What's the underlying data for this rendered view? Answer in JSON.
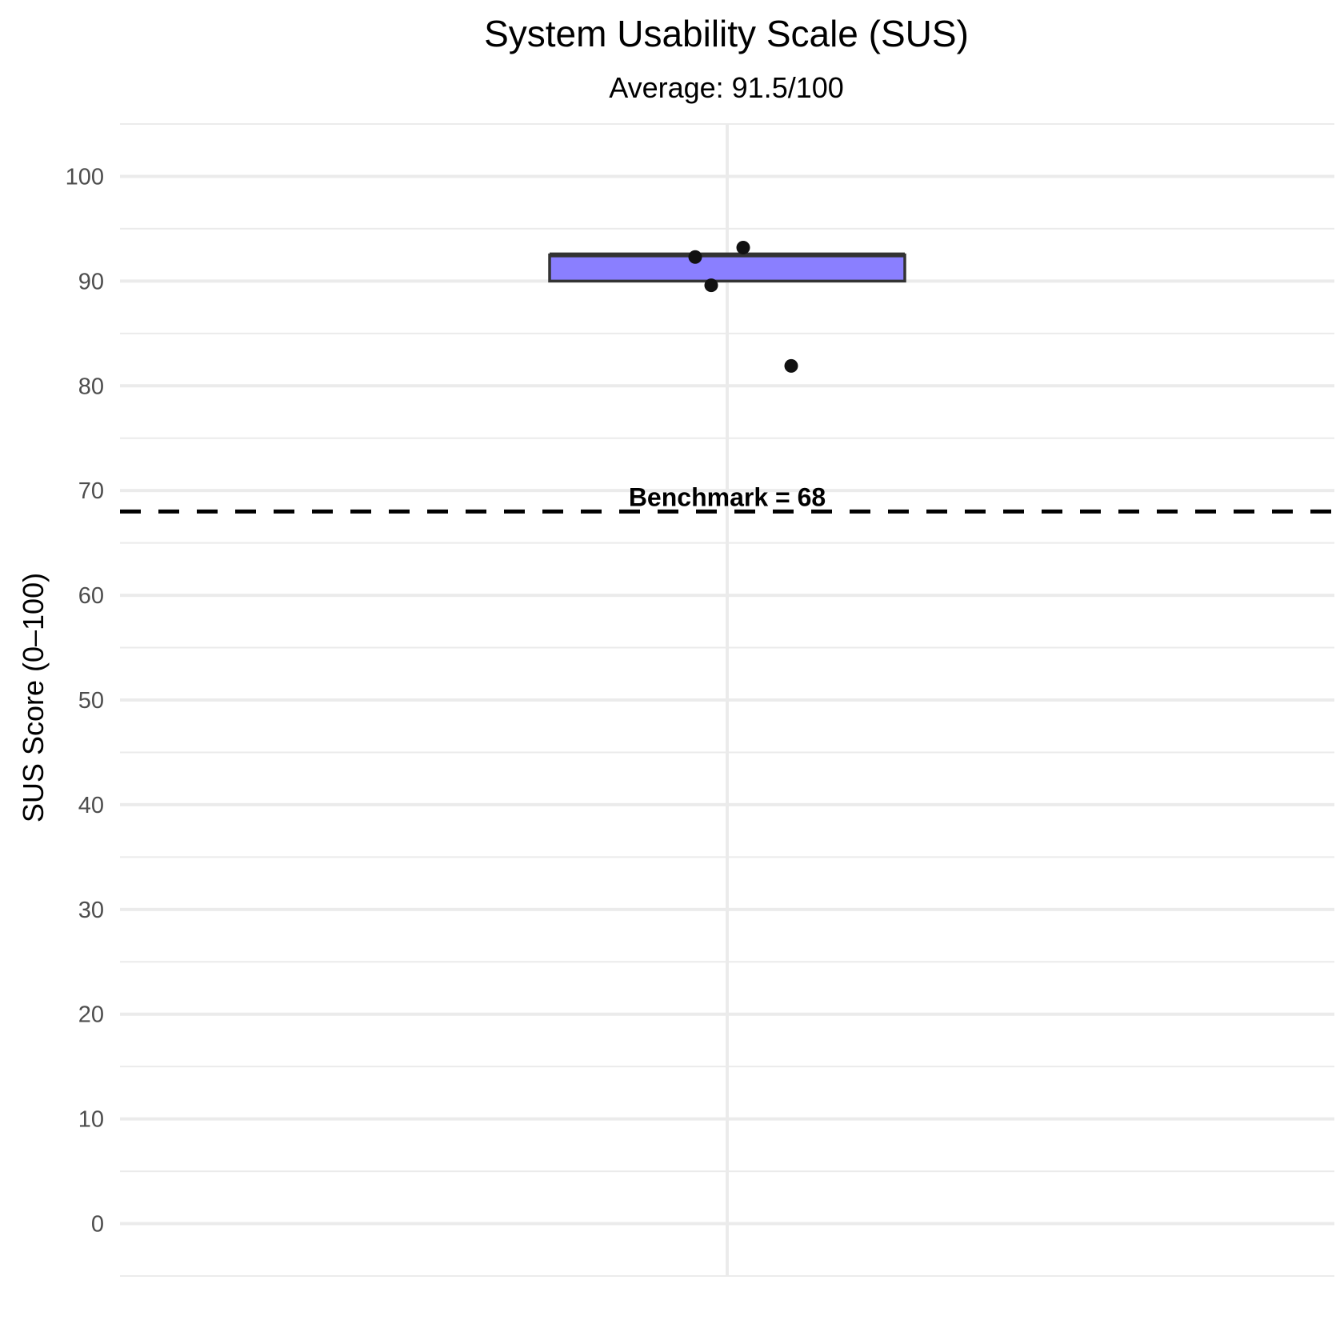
{
  "chart_data": {
    "type": "box",
    "title": "System Usability Scale (SUS)",
    "subtitle": "Average: 91.5/100",
    "ylabel": "SUS Score (0–100)",
    "xlabel": "",
    "ylim": [
      -5,
      105
    ],
    "yticks": [
      0,
      10,
      20,
      30,
      40,
      50,
      60,
      70,
      80,
      90,
      100
    ],
    "ytick_labels": [
      "0",
      "10",
      "20",
      "30",
      "40",
      "50",
      "60",
      "70",
      "80",
      "90",
      "100"
    ],
    "grid": true,
    "box": {
      "q1": 90.0,
      "median": 92.5,
      "q3": 92.5,
      "fill_color": "#8a7fff",
      "outline_color": "#333333"
    },
    "points": [
      {
        "x_jitter": -0.1,
        "y": 92.3
      },
      {
        "x_jitter": 0.05,
        "y": 93.2
      },
      {
        "x_jitter": -0.05,
        "y": 89.6
      },
      {
        "x_jitter": 0.2,
        "y": 81.9
      }
    ],
    "reference_line": {
      "y": 68,
      "style": "dashed",
      "label": "Benchmark = 68"
    },
    "colors": {
      "grid": "#ebebeb",
      "tick_text": "#4d4d4d",
      "points": "#111111",
      "reference": "#000000"
    }
  }
}
